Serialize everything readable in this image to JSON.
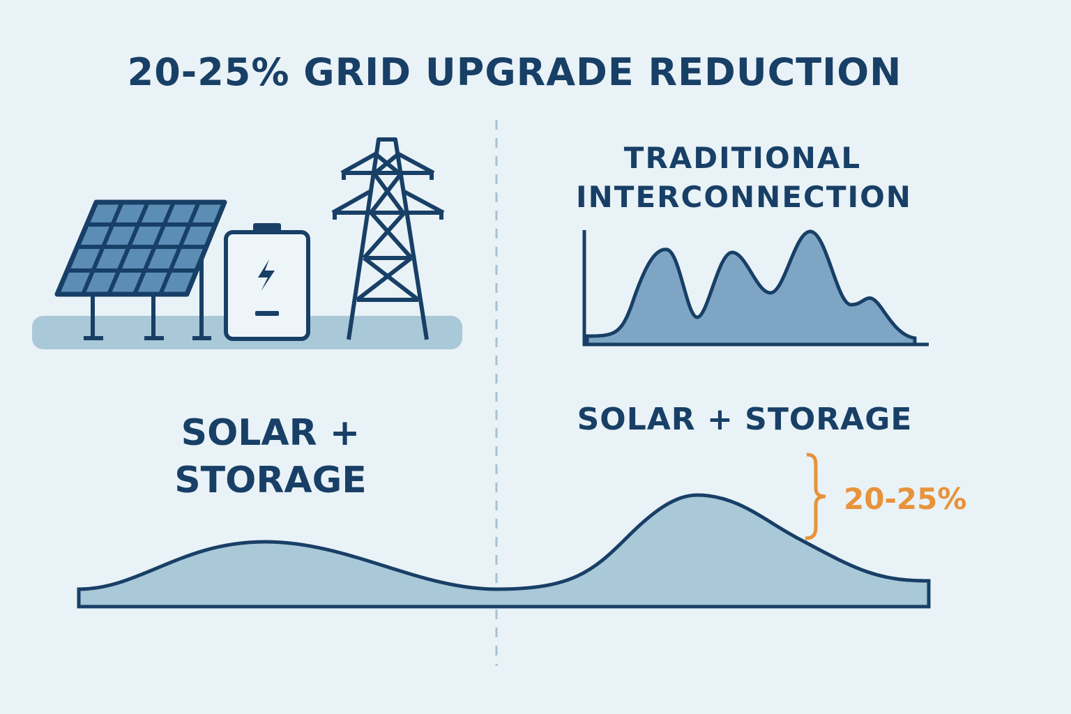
{
  "title": "20-25% GRID UPGRADE REDUCTION",
  "left": {
    "label_line1": "SOLAR +",
    "label_line2": "STORAGE"
  },
  "right": {
    "traditional_line1": "TRADITIONAL",
    "traditional_line2": "INTERCONNECTION",
    "solar_storage_label": "SOLAR + STORAGE",
    "reduction_label": "20-25%"
  },
  "colors": {
    "background": "#e9f2f6",
    "navy": "#183f66",
    "fill": "#a9c8d8",
    "panel": "#5b8db5",
    "accent": "#e8923a"
  }
}
